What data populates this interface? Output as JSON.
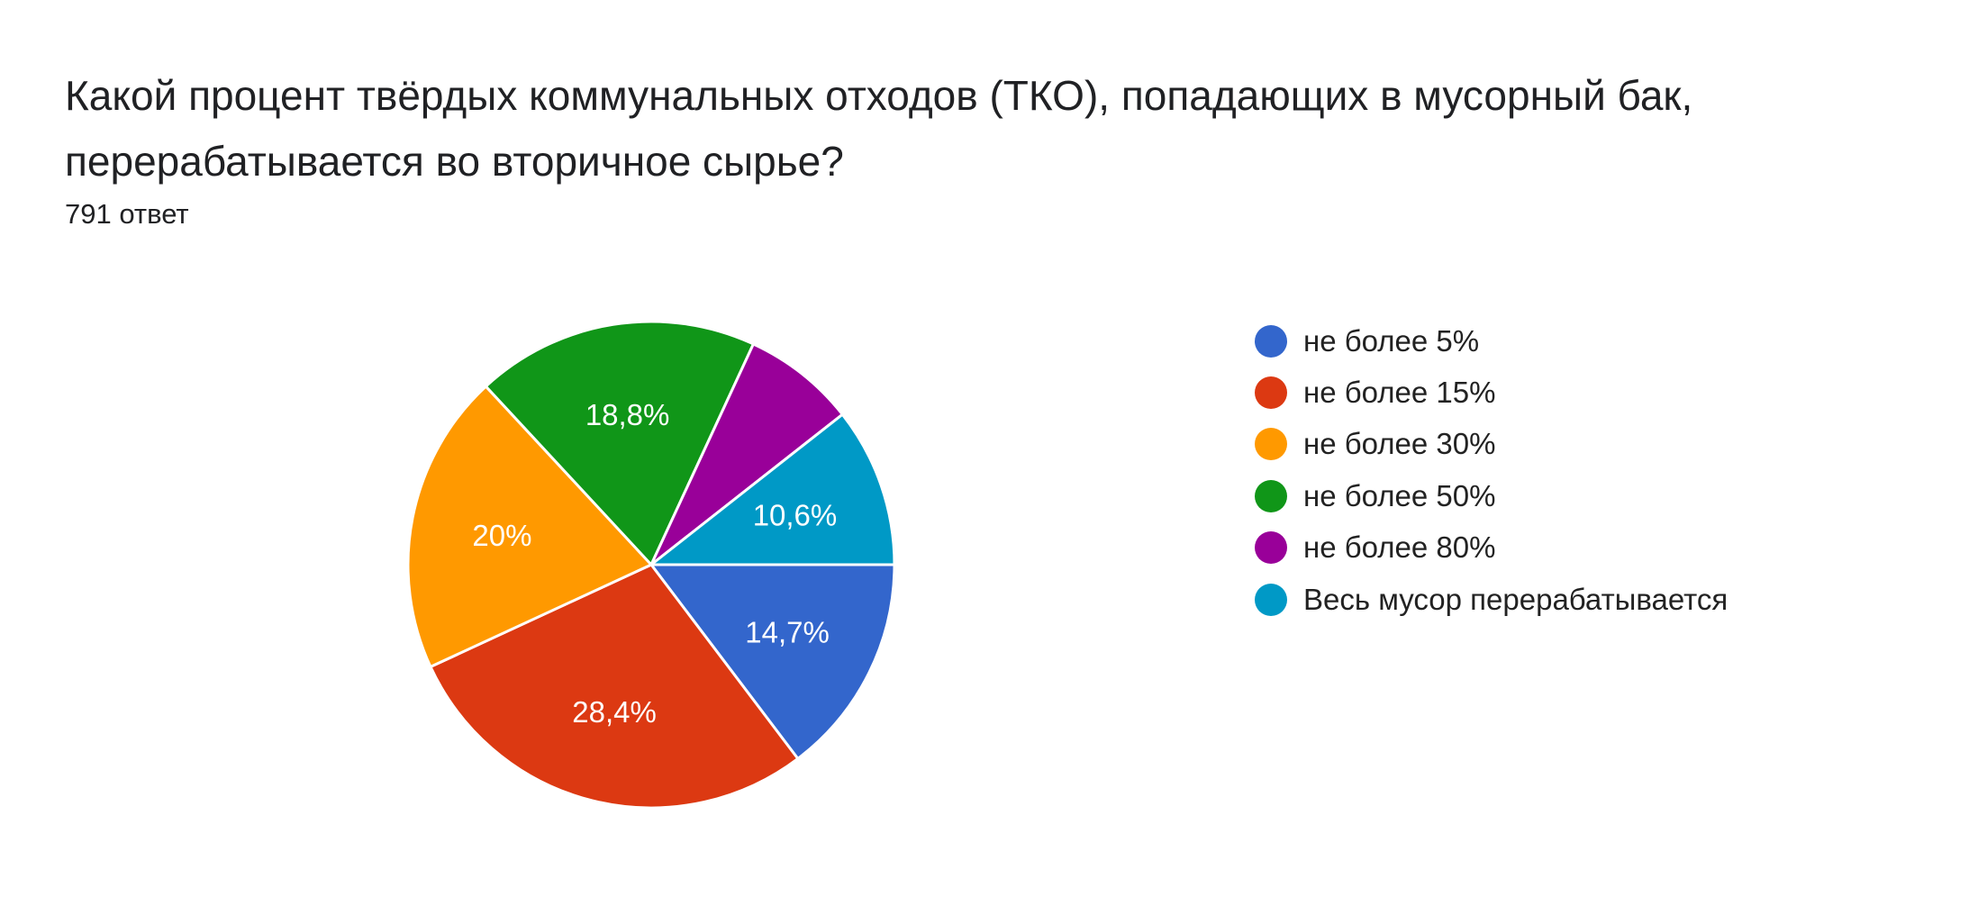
{
  "question": {
    "title": "Какой процент твёрдых коммунальных отходов (ТКО), попадающих в мусорный бак, перерабатывается во вторичное сырье?",
    "response_count": "791 ответ"
  },
  "chart_data": {
    "type": "pie",
    "title": "",
    "legend_position": "right",
    "slices": [
      {
        "label": "не более 5%",
        "value": 14.7,
        "display": "14,7%",
        "color": "#3366cc"
      },
      {
        "label": "не более 15%",
        "value": 28.4,
        "display": "28,4%",
        "color": "#dc3912"
      },
      {
        "label": "не более 30%",
        "value": 20.0,
        "display": "20%",
        "color": "#ff9900"
      },
      {
        "label": "не более 50%",
        "value": 18.8,
        "display": "18,8%",
        "color": "#109618"
      },
      {
        "label": "не более 80%",
        "value": 7.5,
        "display": "",
        "color": "#990099"
      },
      {
        "label": "Весь мусор перерабатывается",
        "value": 10.6,
        "display": "10,6%",
        "color": "#0099c6"
      }
    ]
  }
}
